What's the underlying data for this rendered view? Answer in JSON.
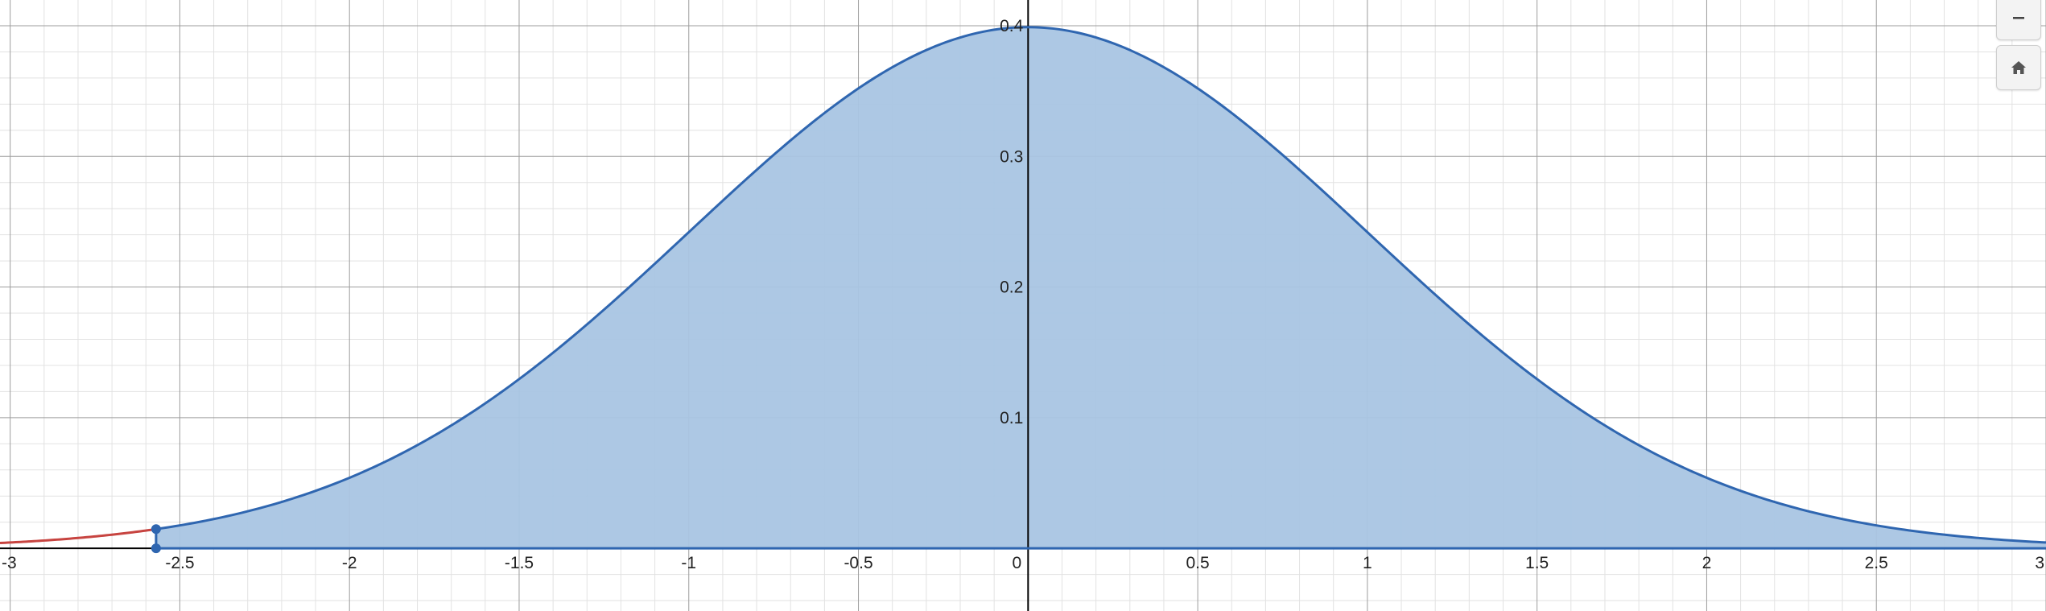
{
  "colors": {
    "curve": "#2f66b0",
    "fill": "#a9c5e3",
    "tail": "#c74440",
    "point": "#2f66b0",
    "major_grid": "#9d9d9d",
    "minor_grid": "#e2e2e2",
    "axis": "#000000",
    "tick_text": "#222222"
  },
  "controls": {
    "zoom_out_icon": "minus-icon",
    "home_icon": "home-icon"
  },
  "chart_data": {
    "type": "area",
    "function": "standard normal density",
    "mean": 0,
    "sd": 1,
    "xlim": [
      -3.03,
      3.0
    ],
    "ylim": [
      -0.048,
      0.4
    ],
    "grid": true,
    "x_ticks": [
      "-3",
      "-2.5",
      "-2",
      "-1.5",
      "-1",
      "-0.5",
      "0",
      "0.5",
      "1",
      "1.5",
      "2",
      "2.5",
      "3"
    ],
    "x_tick_values": [
      -3,
      -2.5,
      -2,
      -1.5,
      -1,
      -0.5,
      0,
      0.5,
      1,
      1.5,
      2,
      2.5,
      3
    ],
    "y_ticks": [
      "0.1",
      "0.2",
      "0.3",
      "0.4"
    ],
    "y_tick_values": [
      0.1,
      0.2,
      0.3,
      0.4
    ],
    "shaded_from": -2.57,
    "shaded_to": 3.0,
    "tail_from": -3.03,
    "tail_to": -2.57,
    "points": [
      {
        "x": -2.57,
        "y": 0.0147
      },
      {
        "x": -2.57,
        "y": 0
      }
    ]
  }
}
